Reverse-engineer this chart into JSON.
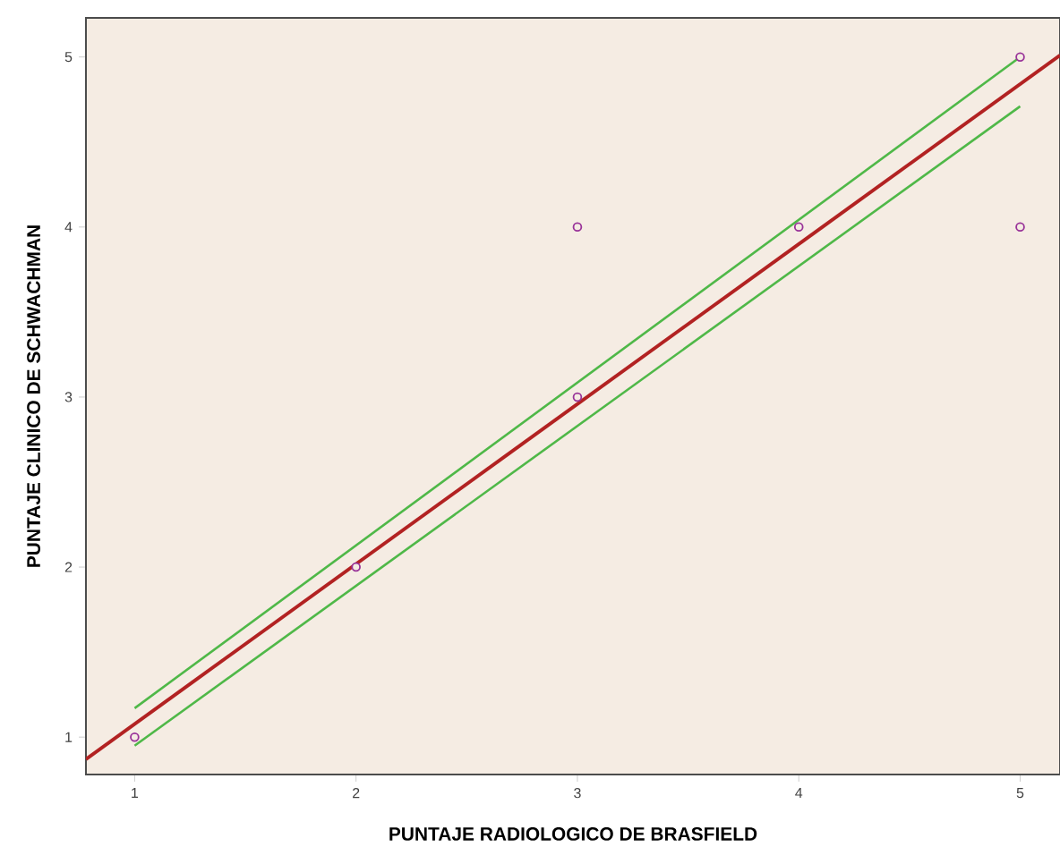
{
  "chart_data": {
    "type": "scatter",
    "xlabel": "PUNTAJE RADIOLOGICO DE BRASFIELD",
    "ylabel": "PUNTAJE CLINICO DE SCHWACHMAN",
    "xlim": [
      0.78,
      5.18
    ],
    "ylim": [
      0.78,
      5.23
    ],
    "xticks": [
      1,
      2,
      3,
      4,
      5
    ],
    "yticks": [
      1,
      2,
      3,
      4,
      5
    ],
    "grid": false,
    "marker": "circle",
    "series": [
      {
        "color": "#993399",
        "x": [
          1,
          2,
          3,
          3,
          4,
          5,
          5
        ],
        "values": [
          1,
          2,
          3,
          4,
          4,
          5,
          4
        ]
      },
      {
        "type": "line",
        "marker": "none",
        "color": "#b22222",
        "x": [
          0.78,
          5.18
        ],
        "values": [
          0.87,
          5.01
        ]
      },
      {
        "type": "line",
        "marker": "none",
        "color": "#4fb848",
        "x": [
          1,
          5
        ],
        "values": [
          1.17,
          5.0
        ]
      },
      {
        "type": "line",
        "marker": "none",
        "color": "#4fb848",
        "x": [
          1,
          5
        ],
        "values": [
          0.95,
          4.71
        ]
      }
    ]
  }
}
